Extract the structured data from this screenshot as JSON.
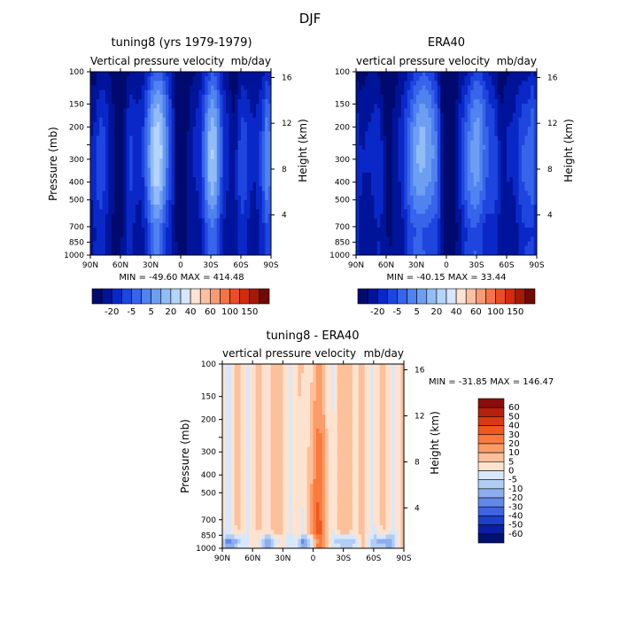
{
  "figure_title": "DJF",
  "chart_data": [
    {
      "id": "p1",
      "type": "contour",
      "title": "tuning8 (yrs 1979-1979)",
      "subtitle_left": "Vertical pressure velocity",
      "subtitle_right": "mb/day",
      "xlabel": "",
      "ylabel": "Pressure (mb)",
      "y2label": "Height (km)",
      "x_ticks": [
        "90N",
        "60N",
        "30N",
        "0",
        "30S",
        "60S",
        "90S"
      ],
      "x_values": [
        90,
        60,
        30,
        0,
        -30,
        -60,
        -90
      ],
      "y_ticks": [
        "100",
        "150",
        "200",
        "250",
        "300",
        "400",
        "500",
        "700",
        "850",
        "1000"
      ],
      "y_values": [
        100,
        150,
        200,
        250,
        300,
        400,
        500,
        700,
        850,
        1000
      ],
      "y2_ticks": [
        "16",
        "12",
        "8",
        "4"
      ],
      "y2_values": [
        16,
        12,
        8,
        4
      ],
      "ylim": [
        1000,
        100
      ],
      "xlim": [
        90,
        -90
      ],
      "stats": "MIN = -49.60   MAX = 414.48",
      "colorbar_labels": [
        "-20",
        "-5",
        "5",
        "20",
        "40",
        "60",
        "100",
        "150"
      ],
      "colorbar_colors": [
        "#000a6e",
        "#00149a",
        "#0a28c8",
        "#1e46de",
        "#3764ea",
        "#5082f0",
        "#6e9ef2",
        "#91bcf6",
        "#b4d4fa",
        "#d7e6fc",
        "#fde3d2",
        "#fbc0a4",
        "#f89a76",
        "#f27448",
        "#ea4e24",
        "#d02c0e",
        "#a41a08",
        "#720a04"
      ]
    },
    {
      "id": "p2",
      "type": "contour",
      "title": "ERA40",
      "subtitle_left": "vertical pressure velocity",
      "subtitle_right": "mb/day",
      "xlabel": "",
      "ylabel": "",
      "y2label": "Height (km)",
      "x_ticks": [
        "90N",
        "60N",
        "30N",
        "0",
        "30S",
        "60S",
        "90S"
      ],
      "x_values": [
        90,
        60,
        30,
        0,
        -30,
        -60,
        -90
      ],
      "y_ticks": [
        "100",
        "150",
        "200",
        "250",
        "300",
        "400",
        "500",
        "700",
        "850",
        "1000"
      ],
      "y_values": [
        100,
        150,
        200,
        250,
        300,
        400,
        500,
        700,
        850,
        1000
      ],
      "y2_ticks": [
        "16",
        "12",
        "8",
        "4"
      ],
      "y2_values": [
        16,
        12,
        8,
        4
      ],
      "ylim": [
        1000,
        100
      ],
      "xlim": [
        90,
        -90
      ],
      "stats": "MIN = -40.15   MAX = 33.44",
      "colorbar_labels": [
        "-20",
        "-5",
        "5",
        "20",
        "40",
        "60",
        "100",
        "150"
      ],
      "colorbar_colors": [
        "#000a6e",
        "#00149a",
        "#0a28c8",
        "#1e46de",
        "#3764ea",
        "#5082f0",
        "#6e9ef2",
        "#91bcf6",
        "#b4d4fa",
        "#d7e6fc",
        "#fde3d2",
        "#fbc0a4",
        "#f89a76",
        "#f27448",
        "#ea4e24",
        "#d02c0e",
        "#a41a08",
        "#720a04"
      ]
    },
    {
      "id": "p3",
      "type": "contour",
      "title": "tuning8 - ERA40",
      "subtitle_left": "vertical pressure velocity",
      "subtitle_right": "mb/day",
      "xlabel": "",
      "ylabel": "Pressure (mb)",
      "y2label": "Height (km)",
      "x_ticks": [
        "90N",
        "60N",
        "30N",
        "0",
        "30S",
        "60S",
        "90S"
      ],
      "x_values": [
        90,
        60,
        30,
        0,
        -30,
        -60,
        -90
      ],
      "y_ticks": [
        "100",
        "150",
        "200",
        "250",
        "300",
        "400",
        "500",
        "700",
        "850",
        "1000"
      ],
      "y_values": [
        100,
        150,
        200,
        250,
        300,
        400,
        500,
        700,
        850,
        1000
      ],
      "y2_ticks": [
        "16",
        "12",
        "8",
        "4"
      ],
      "y2_values": [
        16,
        12,
        8,
        4
      ],
      "ylim": [
        1000,
        100
      ],
      "xlim": [
        90,
        -90
      ],
      "stats": "MIN = -31.85   MAX = 146.47",
      "colorbar_labels": [
        "60",
        "50",
        "40",
        "30",
        "20",
        "10",
        "5",
        "0",
        "-5",
        "-10",
        "-20",
        "-30",
        "-40",
        "-50",
        "-60"
      ],
      "colorbar_colors": [
        "#8a0c0c",
        "#b4200c",
        "#d83a14",
        "#f0581e",
        "#fb7a3c",
        "#fc9c68",
        "#fcc09a",
        "#fde3cf",
        "#d8e8fc",
        "#b2cdf4",
        "#8caeee",
        "#6488e8",
        "#3e64e2",
        "#1e3ecc",
        "#0a20a0",
        "#00116e"
      ]
    }
  ]
}
